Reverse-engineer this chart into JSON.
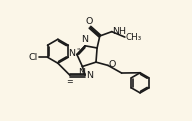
{
  "background_color": "#fbf6e8",
  "line_color": "#1a1a1a",
  "line_width": 1.2,
  "font_size": 6.8,
  "figsize": [
    1.92,
    1.21
  ],
  "dpi": 100,
  "xlim": [
    -0.5,
    3.0
  ],
  "ylim": [
    -0.3,
    1.4
  ]
}
